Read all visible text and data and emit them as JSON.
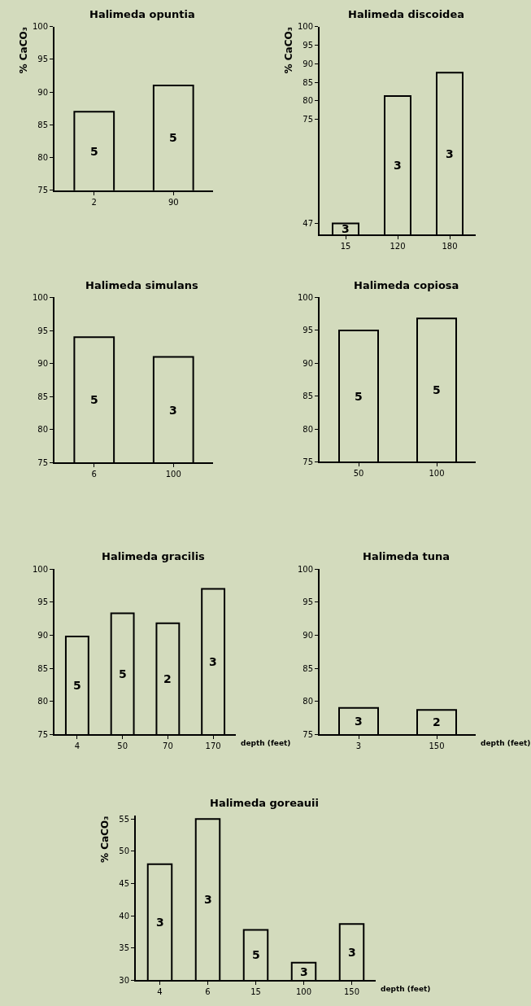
{
  "chart_data": [
    {
      "type": "bar",
      "title": "Halimeda opuntia",
      "ylabel": "% CaCO₃",
      "categories": [
        "2",
        "90"
      ],
      "values": [
        87,
        91
      ],
      "color": "#d3dbbd",
      "ylim": [
        75,
        100
      ],
      "yticks": [
        75,
        80,
        85,
        90,
        95,
        100
      ],
      "annotations": [
        "5",
        "5"
      ]
    },
    {
      "type": "bar",
      "title": "Halimeda discoidea",
      "ylabel": "% CaCO₃",
      "categories": [
        "15",
        "120",
        "180"
      ],
      "values": [
        47,
        81.3,
        87.6
      ],
      "color": "#d3dbbd",
      "ylim": [
        44,
        100
      ],
      "yticks": [
        47,
        75,
        80,
        85,
        90,
        95,
        100
      ],
      "annotations": [
        "3",
        "3",
        "3"
      ]
    },
    {
      "type": "bar",
      "title": "Halimeda simulans",
      "categories": [
        "6",
        "100"
      ],
      "values": [
        94,
        91
      ],
      "color": "#d3dbbd",
      "ylim": [
        75,
        100
      ],
      "yticks": [
        75,
        80,
        85,
        90,
        95,
        100
      ],
      "annotations": [
        "5",
        "3"
      ]
    },
    {
      "type": "bar",
      "title": "Halimeda copiosa",
      "categories": [
        "50",
        "100"
      ],
      "values": [
        95,
        96.8
      ],
      "color": "#d3dbbd",
      "ylim": [
        75,
        100
      ],
      "yticks": [
        75,
        80,
        85,
        90,
        95,
        100
      ],
      "annotations": [
        "5",
        "5"
      ]
    },
    {
      "type": "bar",
      "title": "Halimeda gracilis",
      "xlabel": "depth (feet)",
      "categories": [
        "4",
        "50",
        "70",
        "170"
      ],
      "values": [
        89.8,
        93.3,
        91.8,
        97
      ],
      "color": "#d3dbbd",
      "ylim": [
        75,
        100
      ],
      "yticks": [
        75,
        80,
        85,
        90,
        95,
        100
      ],
      "annotations": [
        "5",
        "5",
        "2",
        "3"
      ]
    },
    {
      "type": "bar",
      "title": "Halimeda tuna",
      "xlabel": "depth (feet)",
      "categories": [
        "3",
        "150"
      ],
      "values": [
        79,
        78.7
      ],
      "color": "#d3dbbd",
      "ylim": [
        75,
        100
      ],
      "yticks": [
        75,
        80,
        85,
        90,
        95,
        100
      ],
      "annotations": [
        "3",
        "2"
      ]
    },
    {
      "type": "bar",
      "title": "Halimeda goreauii",
      "xlabel": "depth (feet)",
      "ylabel": "% CaCO₃",
      "categories": [
        "4",
        "6",
        "15",
        "100",
        "150"
      ],
      "values": [
        48,
        55,
        37.8,
        32.7,
        38.7
      ],
      "color": "#d3dbbd",
      "ylim": [
        30,
        55.5
      ],
      "yticks": [
        30,
        35,
        40,
        45,
        50,
        55
      ],
      "annotations": [
        "3",
        "3",
        "5",
        "3",
        "3"
      ]
    }
  ]
}
